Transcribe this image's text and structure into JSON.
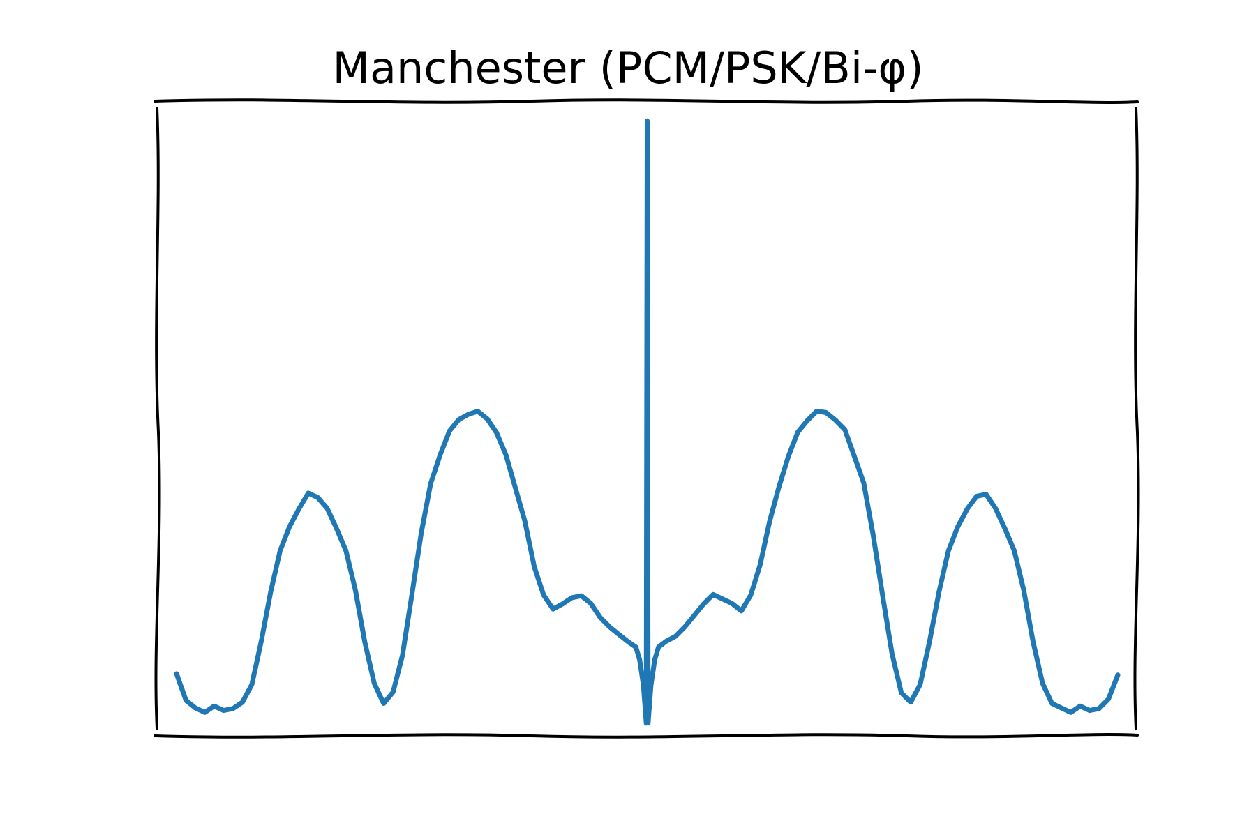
{
  "chart_data": {
    "type": "line",
    "title": "Manchester (PCM/PSK/Bi-φ)",
    "xlabel": "",
    "ylabel": "",
    "axes_visible": false,
    "grid": false,
    "legend": "none",
    "xlim": [
      -2.6,
      2.6
    ],
    "ylim": [
      0,
      1.0
    ],
    "series": [
      {
        "color": "#1f77b4",
        "x": [
          -2.5,
          -2.45,
          -2.4,
          -2.35,
          -2.3,
          -2.25,
          -2.2,
          -2.15,
          -2.1,
          -2.05,
          -2.0,
          -1.95,
          -1.9,
          -1.85,
          -1.8,
          -1.75,
          -1.7,
          -1.65,
          -1.6,
          -1.55,
          -1.5,
          -1.45,
          -1.4,
          -1.35,
          -1.3,
          -1.25,
          -1.2,
          -1.15,
          -1.1,
          -1.05,
          -1.0,
          -0.95,
          -0.9,
          -0.85,
          -0.8,
          -0.75,
          -0.7,
          -0.65,
          -0.6,
          -0.55,
          -0.5,
          -0.45,
          -0.4,
          -0.35,
          -0.3,
          -0.25,
          -0.2,
          -0.15,
          -0.1,
          -0.06,
          -0.04,
          -0.02,
          -0.005,
          0.0,
          0.005,
          0.02,
          0.04,
          0.06,
          0.1,
          0.15,
          0.2,
          0.25,
          0.3,
          0.35,
          0.4,
          0.45,
          0.5,
          0.55,
          0.6,
          0.65,
          0.7,
          0.75,
          0.8,
          0.85,
          0.9,
          0.95,
          1.0,
          1.05,
          1.1,
          1.15,
          1.2,
          1.25,
          1.3,
          1.35,
          1.4,
          1.45,
          1.5,
          1.55,
          1.6,
          1.65,
          1.7,
          1.75,
          1.8,
          1.85,
          1.9,
          1.95,
          2.0,
          2.05,
          2.1,
          2.15,
          2.2,
          2.25,
          2.3,
          2.35,
          2.4,
          2.45,
          2.5
        ],
        "y": [
          0.095,
          0.055,
          0.045,
          0.04,
          0.045,
          0.04,
          0.045,
          0.05,
          0.08,
          0.15,
          0.23,
          0.29,
          0.33,
          0.36,
          0.38,
          0.375,
          0.36,
          0.33,
          0.29,
          0.23,
          0.15,
          0.08,
          0.05,
          0.07,
          0.13,
          0.22,
          0.32,
          0.4,
          0.44,
          0.48,
          0.5,
          0.51,
          0.51,
          0.5,
          0.48,
          0.44,
          0.39,
          0.34,
          0.27,
          0.22,
          0.2,
          0.21,
          0.215,
          0.22,
          0.21,
          0.19,
          0.17,
          0.16,
          0.15,
          0.14,
          0.12,
          0.08,
          0.02,
          0.97,
          0.02,
          0.08,
          0.12,
          0.14,
          0.15,
          0.16,
          0.17,
          0.19,
          0.21,
          0.22,
          0.215,
          0.21,
          0.2,
          0.22,
          0.27,
          0.34,
          0.39,
          0.44,
          0.48,
          0.5,
          0.51,
          0.51,
          0.5,
          0.48,
          0.44,
          0.4,
          0.32,
          0.22,
          0.13,
          0.07,
          0.05,
          0.08,
          0.15,
          0.23,
          0.29,
          0.33,
          0.36,
          0.375,
          0.38,
          0.36,
          0.33,
          0.29,
          0.23,
          0.15,
          0.08,
          0.05,
          0.045,
          0.04,
          0.045,
          0.04,
          0.045,
          0.055,
          0.095
        ]
      }
    ]
  }
}
